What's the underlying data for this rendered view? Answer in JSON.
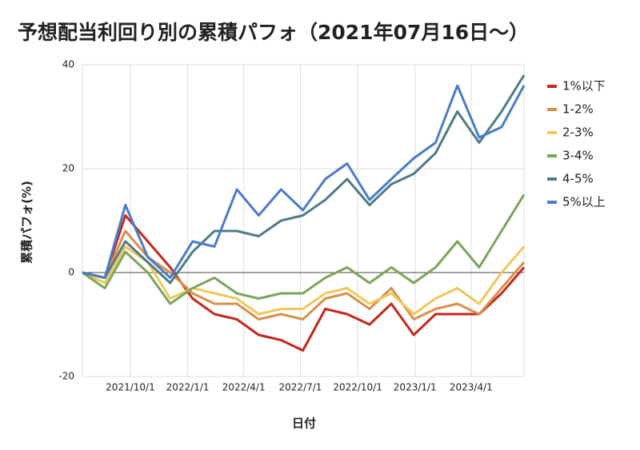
{
  "chart_data": {
    "type": "line",
    "title": "予想配当利回り別の累積パフォ（2021年07月16日〜）",
    "x_label": "日付",
    "y_label": "累積パフォ(%)",
    "x": [
      "2021-07-16",
      "2021-08-21",
      "2021-09-23",
      "2021-10-29",
      "2021-12-04",
      "2022-01-09",
      "2022-02-13",
      "2022-03-21",
      "2022-04-25",
      "2022-05-31",
      "2022-07-05",
      "2022-08-10",
      "2022-09-14",
      "2022-10-20",
      "2022-11-24",
      "2022-12-30",
      "2023-02-03",
      "2023-03-10",
      "2023-04-14",
      "2023-05-20",
      "2023-06-25"
    ],
    "xlim": [
      "2021-07-16",
      "2023-06-25"
    ],
    "xticks": [
      {
        "value": "2021-10-01",
        "label": "2021/10/1"
      },
      {
        "value": "2022-01-01",
        "label": "2022/1/1"
      },
      {
        "value": "2022-04-01",
        "label": "2022/4/1"
      },
      {
        "value": "2022-07-01",
        "label": "2022/7/1"
      },
      {
        "value": "2022-10-01",
        "label": "2022/10/1"
      },
      {
        "value": "2023-01-01",
        "label": "2023/1/1"
      },
      {
        "value": "2023-04-01",
        "label": "2023/4/1"
      }
    ],
    "ylim": [
      -20,
      40
    ],
    "yticks": [
      -20,
      0,
      20,
      40
    ],
    "grid": true,
    "legend": "right",
    "series": [
      {
        "name": "1%以下",
        "color": "#c5281c",
        "values": [
          0,
          -1,
          11,
          6,
          1,
          -5,
          -8,
          -9,
          -12,
          -13,
          -15,
          -7,
          -8,
          -10,
          -6,
          -12,
          -8,
          -8,
          -8,
          -4,
          1
        ]
      },
      {
        "name": "1-2%",
        "color": "#d9904a",
        "values": [
          0,
          -1,
          8,
          3,
          0,
          -4,
          -6,
          -6,
          -9,
          -8,
          -9,
          -5,
          -4,
          -7,
          -3,
          -9,
          -7,
          -6,
          -8,
          -3,
          2
        ]
      },
      {
        "name": "2-3%",
        "color": "#f1c75b",
        "values": [
          0,
          -2,
          5,
          2,
          -5,
          -3,
          -4,
          -5,
          -8,
          -7,
          -7,
          -4,
          -3,
          -6,
          -4,
          -8,
          -5,
          -3,
          -6,
          0,
          5
        ]
      },
      {
        "name": "3-4%",
        "color": "#7aa65a",
        "values": [
          0,
          -3,
          4,
          0,
          -6,
          -3,
          -1,
          -4,
          -5,
          -4,
          -4,
          -1,
          1,
          -2,
          1,
          -2,
          1,
          6,
          1,
          8,
          15
        ]
      },
      {
        "name": "4-5%",
        "color": "#4f7c88",
        "values": [
          0,
          -1,
          6,
          2,
          -2,
          4,
          8,
          8,
          7,
          10,
          11,
          14,
          18,
          13,
          17,
          19,
          23,
          31,
          25,
          31,
          38
        ]
      },
      {
        "name": "5%以上",
        "color": "#4a7cc9",
        "values": [
          0,
          -1,
          13,
          3,
          -1,
          6,
          5,
          16,
          11,
          16,
          12,
          18,
          21,
          14,
          18,
          22,
          25,
          36,
          26,
          28,
          36
        ]
      }
    ]
  }
}
